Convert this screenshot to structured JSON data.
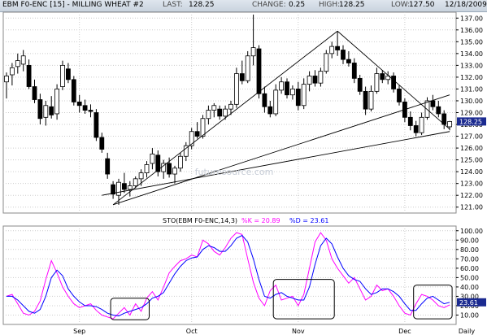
{
  "header": {
    "symbol_title": "EBM F0-ENC [15] - MILLING WHEAT #2",
    "last_label": "LAST:",
    "last_value": "128.25",
    "change_label": "CHANGE:",
    "change_value": "0.25",
    "high_label": "HIGH:",
    "high_value": "128.25",
    "low_label": "LOW:",
    "low_value": "127.50",
    "date": "12/18/2009"
  },
  "watermark": "futuresource.com",
  "colors": {
    "up": "#ffffff",
    "down": "#000000",
    "k_line": "#ff00ff",
    "d_line": "#0000ff",
    "trendline": "#000000",
    "grid": "#cccccc",
    "last_badge": "#1b2a90"
  },
  "price_badge": "128.25",
  "stoch_badge": "23.61",
  "chart_data": [
    {
      "type": "candlestick",
      "title": "EBM F0-ENC [15] - MILLING WHEAT #2",
      "ylim": [
        120.5,
        137.5
      ],
      "y_ticks": [
        "137.00",
        "136.00",
        "135.00",
        "134.00",
        "133.00",
        "132.00",
        "131.00",
        "130.00",
        "129.00",
        "128.00",
        "127.00",
        "126.00",
        "125.00",
        "124.00",
        "123.00",
        "122.00",
        "121.00"
      ],
      "candles": [
        {
          "o": 131.6,
          "h": 132.4,
          "l": 130.2,
          "c": 132.1
        },
        {
          "o": 132.2,
          "h": 133.2,
          "l": 131.3,
          "c": 132.8
        },
        {
          "o": 132.9,
          "h": 134.0,
          "l": 132.3,
          "c": 133.4
        },
        {
          "o": 133.1,
          "h": 134.3,
          "l": 132.5,
          "c": 133.8
        },
        {
          "o": 133.0,
          "h": 133.5,
          "l": 131.0,
          "c": 131.2
        },
        {
          "o": 131.2,
          "h": 131.8,
          "l": 129.8,
          "c": 130.1
        },
        {
          "o": 130.1,
          "h": 130.6,
          "l": 128.0,
          "c": 128.5
        },
        {
          "o": 128.6,
          "h": 130.0,
          "l": 127.9,
          "c": 129.6
        },
        {
          "o": 129.5,
          "h": 130.4,
          "l": 128.5,
          "c": 128.8
        },
        {
          "o": 128.9,
          "h": 131.4,
          "l": 128.4,
          "c": 131.0
        },
        {
          "o": 131.2,
          "h": 133.4,
          "l": 130.9,
          "c": 133.0
        },
        {
          "o": 132.7,
          "h": 133.2,
          "l": 131.5,
          "c": 131.8
        },
        {
          "o": 131.8,
          "h": 132.1,
          "l": 129.6,
          "c": 129.9
        },
        {
          "o": 129.9,
          "h": 130.5,
          "l": 129.0,
          "c": 129.6
        },
        {
          "o": 129.6,
          "h": 130.1,
          "l": 128.9,
          "c": 129.2
        },
        {
          "o": 129.2,
          "h": 129.7,
          "l": 128.6,
          "c": 129.1
        },
        {
          "o": 129.0,
          "h": 129.3,
          "l": 126.6,
          "c": 126.9
        },
        {
          "o": 126.9,
          "h": 127.3,
          "l": 125.6,
          "c": 125.9
        },
        {
          "o": 125.1,
          "h": 125.6,
          "l": 123.4,
          "c": 123.8
        },
        {
          "o": 122.9,
          "h": 123.2,
          "l": 121.7,
          "c": 122.1
        },
        {
          "o": 122.0,
          "h": 123.4,
          "l": 121.2,
          "c": 123.1
        },
        {
          "o": 123.0,
          "h": 123.9,
          "l": 122.2,
          "c": 122.5
        },
        {
          "o": 122.5,
          "h": 123.2,
          "l": 121.9,
          "c": 122.8
        },
        {
          "o": 122.8,
          "h": 123.6,
          "l": 122.6,
          "c": 123.4
        },
        {
          "o": 123.4,
          "h": 124.2,
          "l": 122.8,
          "c": 123.9
        },
        {
          "o": 123.9,
          "h": 124.9,
          "l": 123.5,
          "c": 124.6
        },
        {
          "o": 124.7,
          "h": 126.0,
          "l": 124.2,
          "c": 125.5
        },
        {
          "o": 125.4,
          "h": 125.8,
          "l": 123.6,
          "c": 124.0
        },
        {
          "o": 124.0,
          "h": 125.0,
          "l": 123.4,
          "c": 124.7
        },
        {
          "o": 124.7,
          "h": 125.2,
          "l": 123.5,
          "c": 123.8
        },
        {
          "o": 123.8,
          "h": 124.5,
          "l": 123.0,
          "c": 124.3
        },
        {
          "o": 124.3,
          "h": 125.6,
          "l": 124.0,
          "c": 125.3
        },
        {
          "o": 125.3,
          "h": 126.5,
          "l": 124.9,
          "c": 126.2
        },
        {
          "o": 126.2,
          "h": 127.7,
          "l": 125.9,
          "c": 127.4
        },
        {
          "o": 127.4,
          "h": 128.2,
          "l": 126.8,
          "c": 127.0
        },
        {
          "o": 127.0,
          "h": 128.8,
          "l": 126.8,
          "c": 128.5
        },
        {
          "o": 128.5,
          "h": 129.6,
          "l": 128.0,
          "c": 129.2
        },
        {
          "o": 129.2,
          "h": 129.8,
          "l": 128.6,
          "c": 129.6
        },
        {
          "o": 129.3,
          "h": 129.6,
          "l": 128.4,
          "c": 128.7
        },
        {
          "o": 128.7,
          "h": 129.6,
          "l": 128.4,
          "c": 129.3
        },
        {
          "o": 129.3,
          "h": 130.0,
          "l": 128.8,
          "c": 129.7
        },
        {
          "o": 129.7,
          "h": 132.8,
          "l": 129.4,
          "c": 132.3
        },
        {
          "o": 132.3,
          "h": 133.4,
          "l": 131.4,
          "c": 131.7
        },
        {
          "o": 131.7,
          "h": 134.2,
          "l": 131.5,
          "c": 133.8
        },
        {
          "o": 133.8,
          "h": 137.3,
          "l": 133.0,
          "c": 134.5
        },
        {
          "o": 134.4,
          "h": 134.7,
          "l": 130.2,
          "c": 130.6
        },
        {
          "o": 130.6,
          "h": 131.2,
          "l": 129.0,
          "c": 129.5
        },
        {
          "o": 129.5,
          "h": 130.0,
          "l": 128.6,
          "c": 128.9
        },
        {
          "o": 128.9,
          "h": 131.4,
          "l": 128.7,
          "c": 130.9
        },
        {
          "o": 130.9,
          "h": 132.0,
          "l": 130.6,
          "c": 131.6
        },
        {
          "o": 131.6,
          "h": 131.9,
          "l": 130.2,
          "c": 130.5
        },
        {
          "o": 130.5,
          "h": 131.3,
          "l": 130.1,
          "c": 131.0
        },
        {
          "o": 131.0,
          "h": 131.6,
          "l": 129.2,
          "c": 129.6
        },
        {
          "o": 129.6,
          "h": 131.9,
          "l": 129.3,
          "c": 131.4
        },
        {
          "o": 131.4,
          "h": 132.5,
          "l": 130.8,
          "c": 132.1
        },
        {
          "o": 132.1,
          "h": 132.6,
          "l": 131.2,
          "c": 131.5
        },
        {
          "o": 131.5,
          "h": 132.8,
          "l": 131.2,
          "c": 132.5
        },
        {
          "o": 132.5,
          "h": 134.3,
          "l": 132.3,
          "c": 134.0
        },
        {
          "o": 134.0,
          "h": 135.0,
          "l": 133.6,
          "c": 134.6
        },
        {
          "o": 134.6,
          "h": 135.9,
          "l": 133.8,
          "c": 134.3
        },
        {
          "o": 134.3,
          "h": 134.7,
          "l": 133.1,
          "c": 133.5
        },
        {
          "o": 133.5,
          "h": 134.2,
          "l": 132.9,
          "c": 133.2
        },
        {
          "o": 133.2,
          "h": 133.6,
          "l": 131.5,
          "c": 131.9
        },
        {
          "o": 131.9,
          "h": 132.2,
          "l": 130.5,
          "c": 130.8
        },
        {
          "o": 130.8,
          "h": 131.2,
          "l": 128.8,
          "c": 129.3
        },
        {
          "o": 129.3,
          "h": 131.3,
          "l": 129.1,
          "c": 130.8
        },
        {
          "o": 130.8,
          "h": 132.8,
          "l": 130.6,
          "c": 132.3
        },
        {
          "o": 132.3,
          "h": 132.6,
          "l": 131.5,
          "c": 131.8
        },
        {
          "o": 131.8,
          "h": 132.5,
          "l": 131.4,
          "c": 132.1
        },
        {
          "o": 132.1,
          "h": 132.4,
          "l": 130.7,
          "c": 131.0
        },
        {
          "o": 131.0,
          "h": 131.3,
          "l": 129.6,
          "c": 129.9
        },
        {
          "o": 129.9,
          "h": 130.2,
          "l": 128.2,
          "c": 128.6
        },
        {
          "o": 128.6,
          "h": 129.1,
          "l": 127.5,
          "c": 127.9
        },
        {
          "o": 127.9,
          "h": 128.3,
          "l": 127.0,
          "c": 127.3
        },
        {
          "o": 127.3,
          "h": 129.0,
          "l": 127.1,
          "c": 128.6
        },
        {
          "o": 128.6,
          "h": 130.3,
          "l": 128.4,
          "c": 130.0
        },
        {
          "o": 130.0,
          "h": 130.5,
          "l": 129.2,
          "c": 129.5
        },
        {
          "o": 129.5,
          "h": 130.0,
          "l": 128.6,
          "c": 128.9
        },
        {
          "o": 128.9,
          "h": 129.2,
          "l": 127.6,
          "c": 128.0
        },
        {
          "o": 127.8,
          "h": 128.3,
          "l": 127.5,
          "c": 128.25
        }
      ],
      "trendlines": [
        {
          "from": [
            19,
            121.2
          ],
          "to": [
            59,
            135.9
          ]
        },
        {
          "from": [
            59,
            135.9
          ],
          "to": [
            79,
            127.6
          ]
        },
        {
          "from": [
            19,
            121.2
          ],
          "to": [
            79,
            130.5
          ]
        },
        {
          "from": [
            17,
            122.0
          ],
          "to": [
            79,
            127.4
          ]
        }
      ],
      "last_price": 128.25
    },
    {
      "type": "line",
      "title": "STO(EBM F0-ENC,14,3)",
      "legend": [
        {
          "label": "%K = 20.89",
          "color": "#ff00ff"
        },
        {
          "label": "%D = 23.61",
          "color": "#0000ff"
        }
      ],
      "ylim": [
        0,
        105
      ],
      "y_ticks": [
        "100.00",
        "90.00",
        "80.00",
        "70.00",
        "60.00",
        "50.00",
        "40.00",
        "30.00",
        "20.00",
        "10.00"
      ],
      "x_tick_labels": [
        {
          "label": "Sep",
          "index": 13
        },
        {
          "label": "Oct",
          "index": 33
        },
        {
          "label": "Nov",
          "index": 52
        },
        {
          "label": "Dec",
          "index": 71
        },
        {
          "label": "Daily",
          "index": 85
        }
      ],
      "series": [
        {
          "name": "%K",
          "values": [
            30,
            32,
            22,
            12,
            10,
            14,
            25,
            48,
            68,
            55,
            40,
            30,
            22,
            18,
            20,
            22,
            15,
            10,
            8,
            6,
            12,
            18,
            10,
            22,
            14,
            28,
            35,
            26,
            40,
            55,
            62,
            68,
            70,
            74,
            72,
            90,
            86,
            78,
            74,
            82,
            92,
            98,
            96,
            70,
            45,
            28,
            20,
            36,
            42,
            26,
            28,
            30,
            20,
            32,
            60,
            88,
            98,
            90,
            70,
            60,
            52,
            44,
            50,
            38,
            26,
            30,
            42,
            36,
            38,
            30,
            20,
            12,
            10,
            22,
            32,
            30,
            26,
            20,
            18,
            20.89
          ]
        },
        {
          "name": "%D",
          "values": [
            30,
            30,
            26,
            20,
            14,
            12,
            16,
            30,
            50,
            58,
            52,
            38,
            30,
            24,
            20,
            20,
            19,
            16,
            12,
            10,
            9,
            12,
            14,
            16,
            18,
            22,
            28,
            30,
            34,
            44,
            54,
            62,
            68,
            71,
            72,
            80,
            84,
            82,
            78,
            78,
            84,
            92,
            95,
            88,
            70,
            48,
            30,
            28,
            32,
            34,
            30,
            28,
            26,
            26,
            40,
            64,
            84,
            92,
            86,
            72,
            60,
            52,
            48,
            46,
            38,
            32,
            34,
            38,
            38,
            35,
            30,
            22,
            15,
            15,
            22,
            28,
            30,
            26,
            22,
            23.61
          ]
        }
      ]
    }
  ]
}
